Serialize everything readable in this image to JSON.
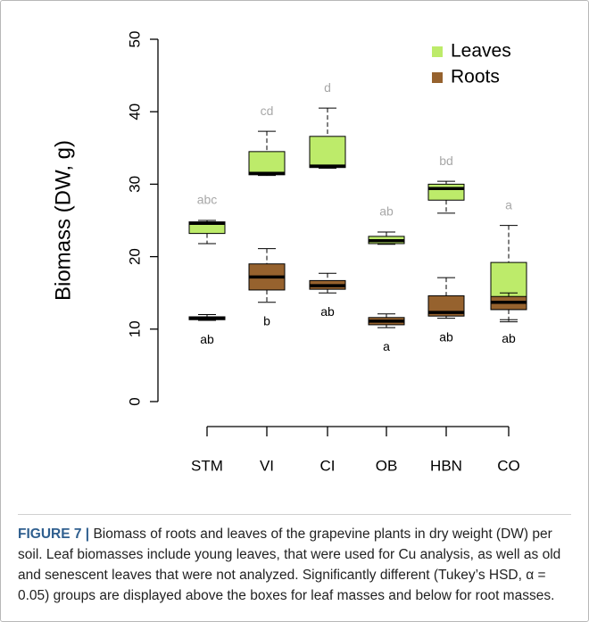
{
  "chart_data": {
    "type": "box",
    "y_label": "Biomass (DW, g)",
    "categories": [
      "STM",
      "VI",
      "CI",
      "OB",
      "HBN",
      "CO"
    ],
    "ylim": [
      0,
      50
    ],
    "yticks": [
      0,
      10,
      20,
      30,
      40,
      50
    ],
    "legend": "top-right",
    "series": [
      {
        "name": "Leaves",
        "color": "#bdeb6a",
        "letter_color": "#a8a8a8",
        "whisker_low": [
          21.8,
          31.2,
          32.2,
          21.7,
          26.0,
          11.0
        ],
        "q1": [
          23.2,
          31.3,
          32.3,
          21.8,
          27.8,
          12.7
        ],
        "median": [
          24.6,
          31.5,
          32.5,
          22.2,
          29.4,
          14.3
        ],
        "q3": [
          24.8,
          34.5,
          36.6,
          22.8,
          30.0,
          19.2
        ],
        "whisker_high": [
          25.0,
          37.3,
          40.5,
          23.4,
          30.4,
          24.3
        ],
        "letters": [
          "abc",
          "cd",
          "d",
          "ab",
          "bd",
          "a"
        ]
      },
      {
        "name": "Roots",
        "color": "#96622e",
        "letter_color": "#000000",
        "whisker_low": [
          11.2,
          13.7,
          15.0,
          10.2,
          11.5,
          11.3
        ],
        "q1": [
          11.3,
          15.4,
          15.5,
          10.6,
          11.8,
          12.7
        ],
        "median": [
          11.5,
          17.2,
          16.0,
          11.1,
          12.3,
          13.7
        ],
        "q3": [
          11.7,
          19.0,
          16.7,
          11.6,
          14.6,
          14.5
        ],
        "whisker_high": [
          12.0,
          21.1,
          17.7,
          12.1,
          17.1,
          15.0
        ],
        "letters": [
          "ab",
          "b",
          "ab",
          "a",
          "ab",
          "ab"
        ]
      }
    ]
  },
  "caption": {
    "label": "FIGURE 7 |",
    "text": "Biomass of roots and leaves of the grapevine plants in dry weight (DW) per soil. Leaf biomasses include young leaves, that were used for Cu analysis, as well as old and senescent leaves that were not analyzed. Significantly different (Tukey’s HSD, α = 0.05) groups are displayed above the boxes for leaf masses and below for root masses."
  }
}
